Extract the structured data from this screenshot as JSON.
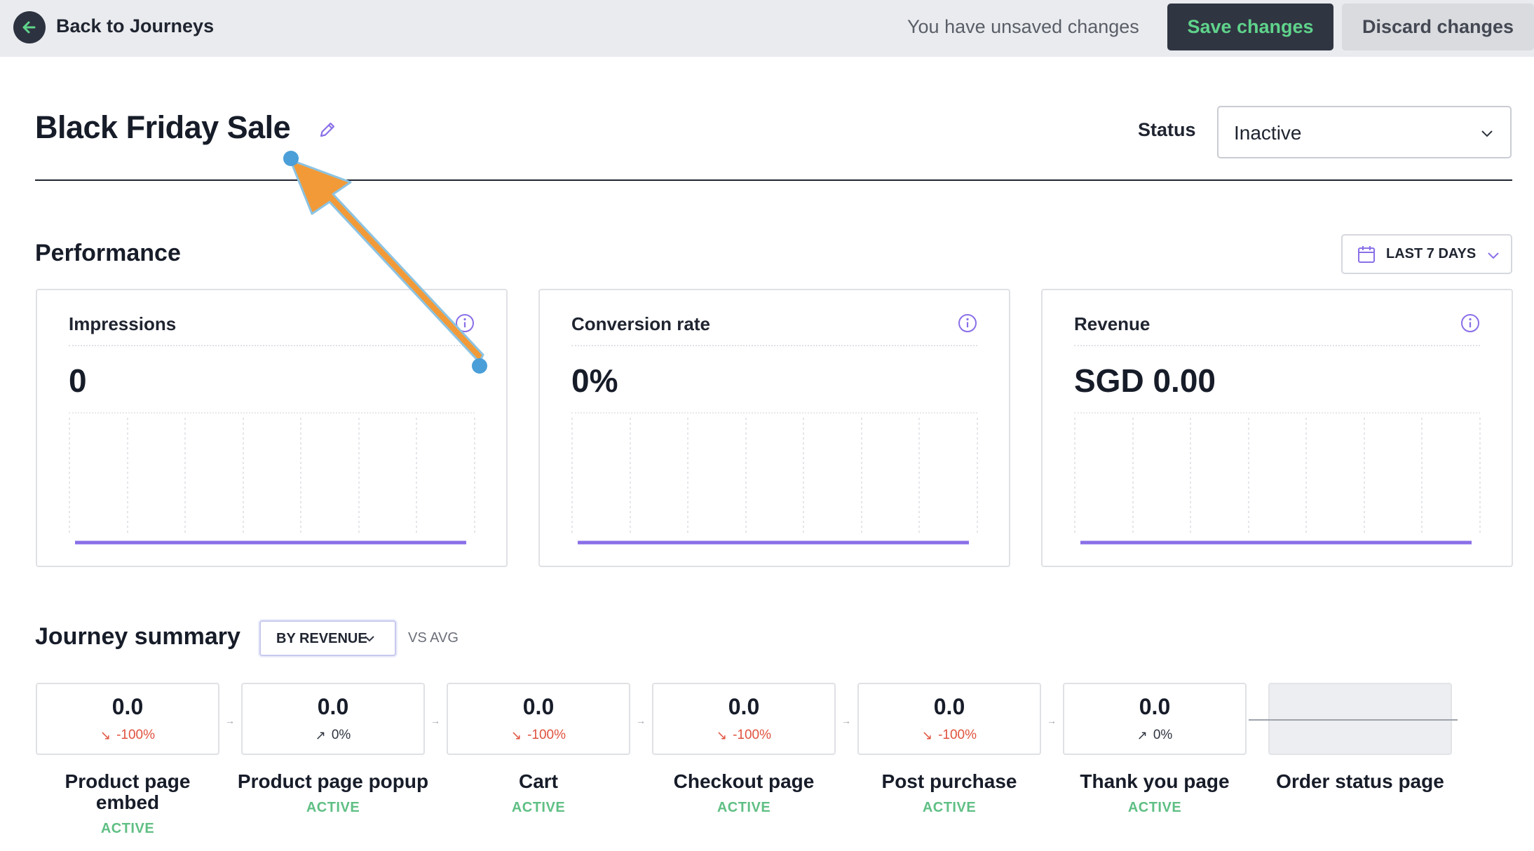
{
  "topbar": {
    "back_label": "Back to Journeys",
    "unsaved_text": "You have unsaved changes",
    "save_label": "Save changes",
    "discard_label": "Discard changes"
  },
  "header": {
    "title": "Black Friday Sale",
    "status_label": "Status",
    "status_value": "Inactive"
  },
  "performance": {
    "title": "Performance",
    "range_label": "LAST 7 DAYS",
    "cards": [
      {
        "title": "Impressions",
        "value": "0"
      },
      {
        "title": "Conversion rate",
        "value": "0%"
      },
      {
        "title": "Revenue",
        "value": "SGD 0.00"
      }
    ]
  },
  "journey": {
    "title": "Journey summary",
    "sort_label": "BY REVENUE",
    "vs_avg": "VS AVG",
    "steps": [
      {
        "value": "0.0",
        "change": "-100%",
        "direction": "down",
        "arrow": "↘",
        "name": "Product page embed",
        "status": "ACTIVE"
      },
      {
        "value": "0.0",
        "change": "0%",
        "direction": "up",
        "arrow": "↗",
        "name": "Product page popup",
        "status": "ACTIVE"
      },
      {
        "value": "0.0",
        "change": "-100%",
        "direction": "down",
        "arrow": "↘",
        "name": "Cart",
        "status": "ACTIVE"
      },
      {
        "value": "0.0",
        "change": "-100%",
        "direction": "down",
        "arrow": "↘",
        "name": "Checkout page",
        "status": "ACTIVE"
      },
      {
        "value": "0.0",
        "change": "-100%",
        "direction": "down",
        "arrow": "↘",
        "name": "Post purchase",
        "status": "ACTIVE"
      },
      {
        "value": "0.0",
        "change": "0%",
        "direction": "up",
        "arrow": "↗",
        "name": "Thank you page",
        "status": "ACTIVE"
      },
      {
        "name": "Order status page"
      }
    ]
  },
  "colors": {
    "accent_purple": "#8a6fe8",
    "save_text_green": "#5fd38b",
    "active_green": "#5fbf84",
    "negative_red": "#e0523e",
    "annotation_orange": "#f29a38",
    "annotation_blue": "#4a9fd8"
  }
}
